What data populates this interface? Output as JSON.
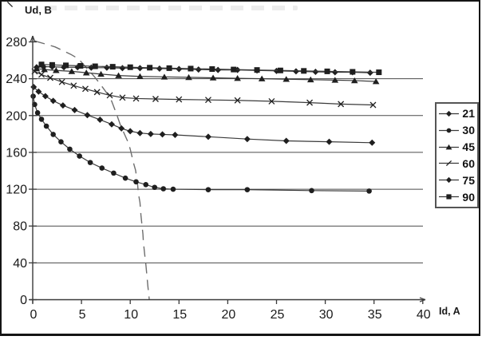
{
  "chart_data": {
    "type": "line",
    "title": "",
    "xlabel": "Id, A",
    "ylabel": "Ud, B",
    "xlim": [
      0,
      40
    ],
    "ylim": [
      0,
      280
    ],
    "xticks": [
      0,
      5,
      10,
      15,
      20,
      25,
      30,
      35,
      40
    ],
    "yticks": [
      0,
      40,
      80,
      120,
      160,
      200,
      240,
      280
    ],
    "grid": "horizontal",
    "legend_position": "right",
    "legend_entries": [
      "21",
      "30",
      "45",
      "60",
      "75",
      "90"
    ],
    "series": [
      {
        "name": "21",
        "marker": "diamond",
        "points": [
          [
            0.4,
            252.5
          ],
          [
            1.1,
            253
          ],
          [
            2,
            253
          ],
          [
            3.2,
            252.5
          ],
          [
            4.6,
            252.5
          ],
          [
            6,
            252
          ],
          [
            7.6,
            252
          ],
          [
            9.2,
            251.5
          ],
          [
            11,
            251.5
          ],
          [
            13,
            251
          ],
          [
            15,
            250.5
          ],
          [
            17,
            250
          ],
          [
            19,
            249.5
          ],
          [
            21,
            249.5
          ],
          [
            23,
            249
          ],
          [
            25,
            248.5
          ],
          [
            27,
            248
          ],
          [
            29,
            247.5
          ],
          [
            31,
            247
          ],
          [
            32.8,
            247
          ],
          [
            34.6,
            246.5
          ]
        ]
      },
      {
        "name": "30",
        "marker": "circle",
        "points": [
          [
            0.05,
            221
          ],
          [
            0.2,
            212
          ],
          [
            0.5,
            203
          ],
          [
            0.9,
            196
          ],
          [
            1.4,
            188.5
          ],
          [
            2.1,
            179.5
          ],
          [
            2.9,
            171.5
          ],
          [
            3.8,
            163.5
          ],
          [
            4.8,
            156
          ],
          [
            5.9,
            149
          ],
          [
            7.1,
            143
          ],
          [
            8.3,
            137.5
          ],
          [
            9.5,
            132
          ],
          [
            10.6,
            128
          ],
          [
            11.6,
            125
          ],
          [
            12.5,
            122
          ],
          [
            13.4,
            120.5
          ],
          [
            14.4,
            120
          ],
          [
            18,
            119.5
          ],
          [
            22,
            119.5
          ],
          [
            28.6,
            118.5
          ],
          [
            34.5,
            118
          ]
        ]
      },
      {
        "name": "45",
        "marker": "triangle",
        "points": [
          [
            0.4,
            251
          ],
          [
            1.2,
            250
          ],
          [
            2.4,
            249
          ],
          [
            4,
            248
          ],
          [
            5.5,
            246.5
          ],
          [
            7,
            245
          ],
          [
            8.8,
            243.5
          ],
          [
            11,
            242.5
          ],
          [
            13.5,
            242
          ],
          [
            16,
            241.5
          ],
          [
            18.5,
            241
          ],
          [
            21,
            240.5
          ],
          [
            23.5,
            240
          ],
          [
            26,
            239.5
          ],
          [
            28.5,
            239
          ],
          [
            31,
            238.5
          ],
          [
            33,
            238
          ],
          [
            35.2,
            237
          ]
        ]
      },
      {
        "name": "60",
        "marker": "x",
        "points": [
          [
            0.2,
            248
          ],
          [
            0.9,
            244.5
          ],
          [
            1.8,
            241
          ],
          [
            3,
            236.5
          ],
          [
            4.2,
            232.5
          ],
          [
            5.4,
            229
          ],
          [
            6.6,
            225.5
          ],
          [
            7.9,
            222
          ],
          [
            9.2,
            219.5
          ],
          [
            10.6,
            218.5
          ],
          [
            12.6,
            218
          ],
          [
            15,
            217.5
          ],
          [
            18,
            217
          ],
          [
            21,
            216.5
          ],
          [
            24.5,
            215.5
          ],
          [
            28.4,
            214
          ],
          [
            31.6,
            212.5
          ],
          [
            34.9,
            211.5
          ]
        ]
      },
      {
        "name": "75",
        "marker": "diamond",
        "points": [
          [
            0.1,
            231
          ],
          [
            0.6,
            226
          ],
          [
            1.3,
            221
          ],
          [
            2.1,
            216
          ],
          [
            3.1,
            211
          ],
          [
            4.3,
            206
          ],
          [
            5.6,
            200.5
          ],
          [
            6.9,
            195.5
          ],
          [
            8.1,
            190.5
          ],
          [
            9.1,
            186
          ],
          [
            10,
            183
          ],
          [
            11,
            181
          ],
          [
            12.1,
            180
          ],
          [
            13.3,
            179.5
          ],
          [
            14.6,
            179
          ],
          [
            18,
            177
          ],
          [
            22,
            174.5
          ],
          [
            26,
            172.5
          ],
          [
            30.4,
            171.5
          ],
          [
            34.8,
            170.5
          ]
        ]
      },
      {
        "name": "90",
        "marker": "square",
        "points": [
          [
            0.9,
            255.5
          ],
          [
            2,
            255
          ],
          [
            3.4,
            254.5
          ],
          [
            4.9,
            254
          ],
          [
            6.4,
            253.5
          ],
          [
            8.2,
            253
          ],
          [
            10,
            252.5
          ],
          [
            12,
            252
          ],
          [
            14,
            251.5
          ],
          [
            16.2,
            251
          ],
          [
            18.4,
            250.5
          ],
          [
            20.6,
            250
          ],
          [
            23,
            249.5
          ],
          [
            25.4,
            249
          ],
          [
            27.8,
            248.5
          ],
          [
            30.2,
            248
          ],
          [
            32.8,
            247.5
          ],
          [
            35.5,
            247
          ]
        ]
      }
    ],
    "dashed_line": {
      "style": "dashed",
      "points": [
        [
          0.2,
          281
        ],
        [
          1.7,
          276.5
        ],
        [
          2.3,
          274.5
        ],
        [
          3.9,
          266.5
        ],
        [
          4.7,
          261.5
        ],
        [
          6.3,
          242.5
        ],
        [
          6.9,
          234.5
        ],
        [
          7.8,
          221.5
        ],
        [
          8.1,
          215.5
        ],
        [
          8.6,
          201.5
        ],
        [
          9,
          189.5
        ],
        [
          9.8,
          170.5
        ],
        [
          10,
          163.5
        ],
        [
          10.35,
          148
        ],
        [
          10.55,
          140.5
        ],
        [
          10.75,
          125.5
        ],
        [
          10.85,
          114.5
        ],
        [
          11,
          105.5
        ],
        [
          11.1,
          91.5
        ],
        [
          11.3,
          71.5
        ],
        [
          11.35,
          62.5
        ],
        [
          11.5,
          47.5
        ],
        [
          11.6,
          38.5
        ],
        [
          11.75,
          21.5
        ],
        [
          11.8,
          15.5
        ],
        [
          11.95,
          0.5
        ]
      ]
    }
  },
  "colors": {
    "line": "#3a3a3a",
    "marker": "#1f1f1f",
    "grid": "#4a4a4a",
    "axis": "#3a3a3a",
    "dashed": "#6e6e6e",
    "text": "#1a1a1a",
    "legend_border": "#555555",
    "frame": "#141414"
  }
}
